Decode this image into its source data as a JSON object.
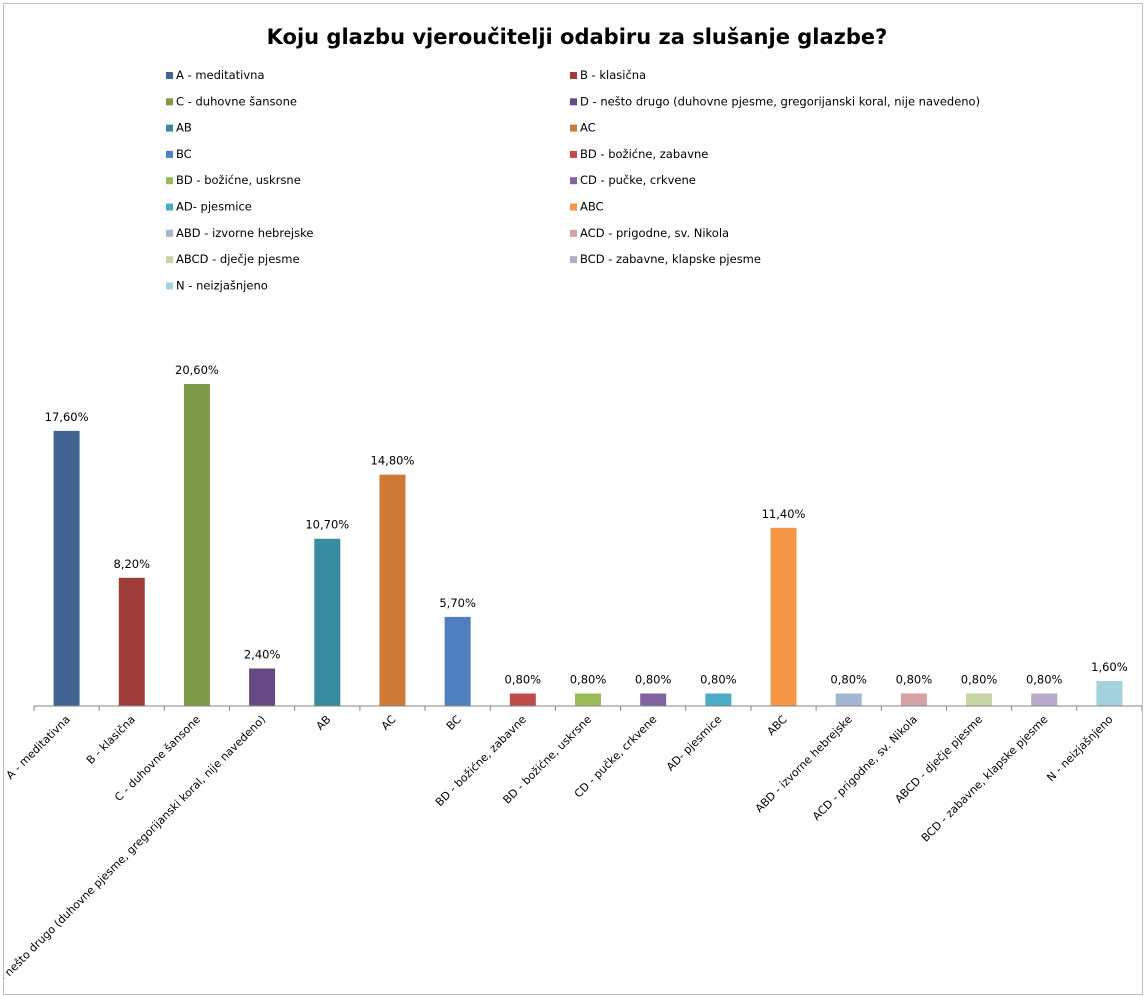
{
  "chart_data": {
    "type": "bar",
    "title": "Koju glazbu vjeroučitelji odabiru za slušanje glazbe?",
    "xlabel": "",
    "ylabel": "",
    "ylim": [
      0,
      22
    ],
    "grid": false,
    "legend_position": "top",
    "categories": [
      "A - meditativna",
      "B - klasična",
      "C - duhovne šansone",
      "D - nešto drugo (duhovne pjesme, gregorijanski koral, nije navedeno)",
      "AB",
      "AC",
      "BC",
      "BD - božićne, zabavne",
      "BD - božićne, uskrsne",
      "CD - pučke, crkvene",
      "AD- pjesmice",
      "ABC",
      "ABD - izvorne hebrejske",
      "ACD - prigodne, sv. Nikola",
      "ABCD - dječje pjesme",
      "BCD - zabavne, klapske pjesme",
      "N - neizjašnjeno"
    ],
    "values": [
      17.6,
      8.2,
      20.6,
      2.4,
      10.7,
      14.8,
      5.7,
      0.8,
      0.8,
      0.8,
      0.8,
      11.4,
      0.8,
      0.8,
      0.8,
      0.8,
      1.6
    ],
    "value_labels": [
      "17,60%",
      "8,20%",
      "20,60%",
      "2,40%",
      "10,70%",
      "14,80%",
      "5,70%",
      "0,80%",
      "0,80%",
      "0,80%",
      "0,80%",
      "11,40%",
      "0,80%",
      "0,80%",
      "0,80%",
      "0,80%",
      "1,60%"
    ],
    "colors": [
      "#426493",
      "#9e3c3a",
      "#7d9a48",
      "#654a82",
      "#398ba0",
      "#cc7a35",
      "#4f7fbe",
      "#be4c4b",
      "#9bbb59",
      "#8064a2",
      "#4bacc6",
      "#f79646",
      "#a4b5d2",
      "#d4a2a2",
      "#c5d6a4",
      "#b7a9c9",
      "#a5d0dd"
    ]
  }
}
